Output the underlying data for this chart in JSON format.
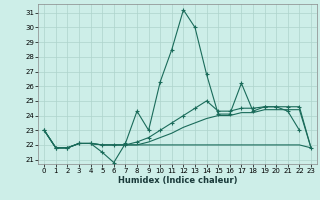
{
  "xlabel": "Humidex (Indice chaleur)",
  "xlim": [
    -0.5,
    23.5
  ],
  "ylim": [
    20.7,
    31.6
  ],
  "yticks": [
    21,
    22,
    23,
    24,
    25,
    26,
    27,
    28,
    29,
    30,
    31
  ],
  "xticks": [
    0,
    1,
    2,
    3,
    4,
    5,
    6,
    7,
    8,
    9,
    10,
    11,
    12,
    13,
    14,
    15,
    16,
    17,
    18,
    19,
    20,
    21,
    22,
    23
  ],
  "background_color": "#cdeee8",
  "grid_color": "#aed4cc",
  "line_color": "#1a6b5a",
  "line1_x": [
    0,
    1,
    2,
    3,
    4,
    5,
    6,
    7,
    8,
    9,
    10,
    11,
    12,
    13,
    14,
    15,
    16,
    17,
    18,
    19,
    20,
    21,
    22
  ],
  "line1_y": [
    23.0,
    21.8,
    21.8,
    22.1,
    22.1,
    21.5,
    20.8,
    22.1,
    24.3,
    23.0,
    26.3,
    28.5,
    31.2,
    30.0,
    26.8,
    24.1,
    24.1,
    26.2,
    24.3,
    24.6,
    24.6,
    24.3,
    23.0
  ],
  "line2_x": [
    0,
    1,
    2,
    3,
    4,
    5,
    6,
    7,
    8,
    9,
    10,
    11,
    12,
    13,
    14,
    15,
    16,
    17,
    18,
    19,
    20,
    21,
    22,
    23
  ],
  "line2_y": [
    23.0,
    21.8,
    21.8,
    22.1,
    22.1,
    22.0,
    22.0,
    22.0,
    22.2,
    22.5,
    23.0,
    23.5,
    24.0,
    24.5,
    25.0,
    24.3,
    24.3,
    24.5,
    24.5,
    24.6,
    24.6,
    24.6,
    24.6,
    21.8
  ],
  "line3_x": [
    0,
    1,
    2,
    3,
    4,
    5,
    6,
    7,
    8,
    9,
    10,
    11,
    12,
    13,
    14,
    15,
    16,
    17,
    18,
    19,
    20,
    21,
    22,
    23
  ],
  "line3_y": [
    23.0,
    21.8,
    21.8,
    22.1,
    22.1,
    22.0,
    22.0,
    22.0,
    22.0,
    22.2,
    22.5,
    22.8,
    23.2,
    23.5,
    23.8,
    24.0,
    24.0,
    24.2,
    24.2,
    24.4,
    24.4,
    24.4,
    24.4,
    21.8
  ],
  "line4_x": [
    0,
    1,
    2,
    3,
    4,
    5,
    6,
    7,
    8,
    9,
    10,
    11,
    12,
    13,
    14,
    15,
    16,
    17,
    18,
    19,
    20,
    21,
    22,
    23
  ],
  "line4_y": [
    23.0,
    21.8,
    21.8,
    22.1,
    22.1,
    22.0,
    22.0,
    22.0,
    22.0,
    22.0,
    22.0,
    22.0,
    22.0,
    22.0,
    22.0,
    22.0,
    22.0,
    22.0,
    22.0,
    22.0,
    22.0,
    22.0,
    22.0,
    21.8
  ]
}
